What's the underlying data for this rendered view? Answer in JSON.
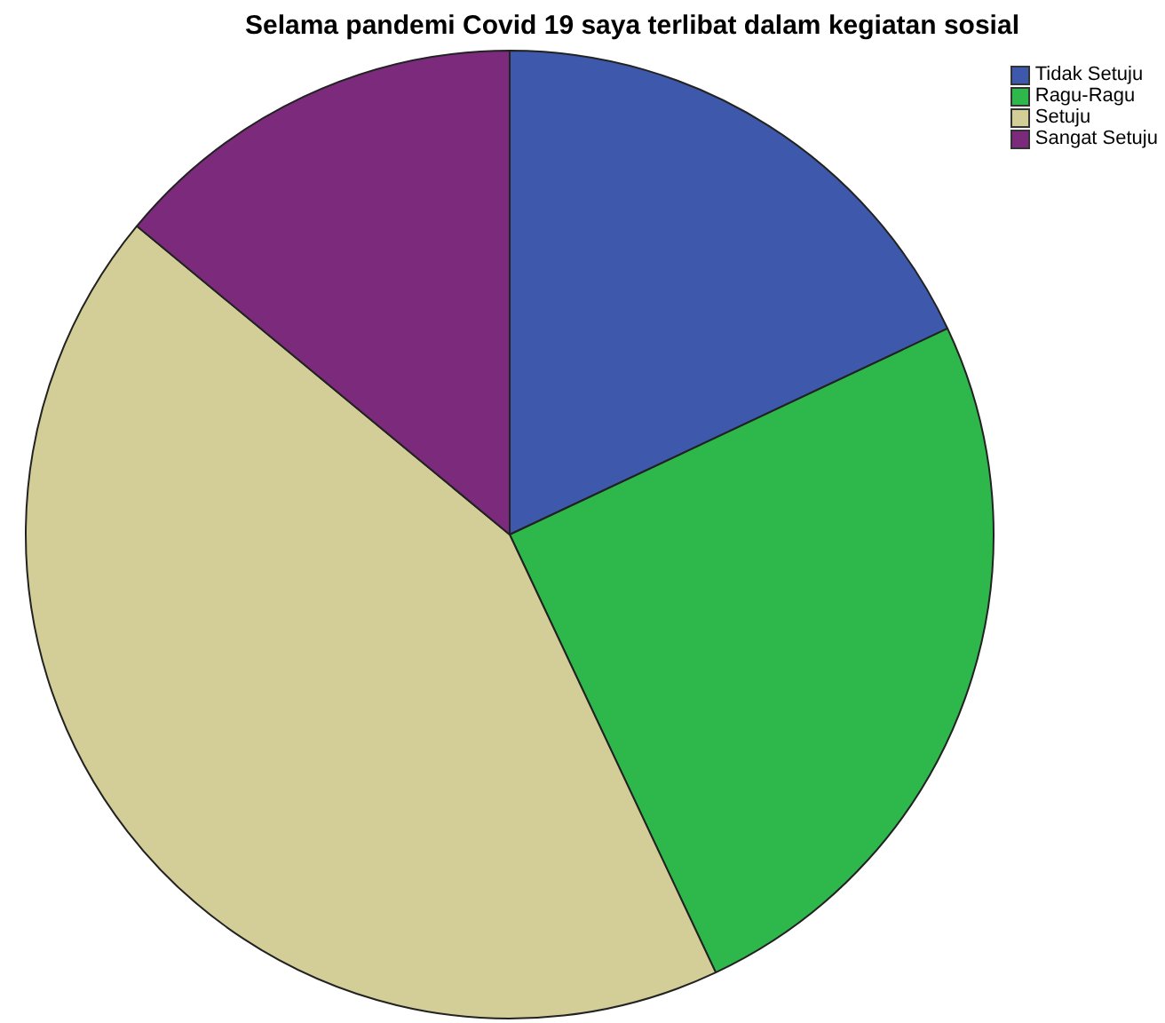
{
  "chart_data": {
    "type": "pie",
    "title": "Selama pandemi Covid 19 saya terlibat dalam kegiatan sosial",
    "categories": [
      "Tidak Setuju",
      "Ragu-Ragu",
      "Setuju",
      "Sangat Setuju"
    ],
    "values": [
      18,
      25,
      43,
      14
    ],
    "colors": [
      "#3e58ac",
      "#2eb84b",
      "#d3ce97",
      "#7b2a7c"
    ],
    "legend": "top right"
  }
}
